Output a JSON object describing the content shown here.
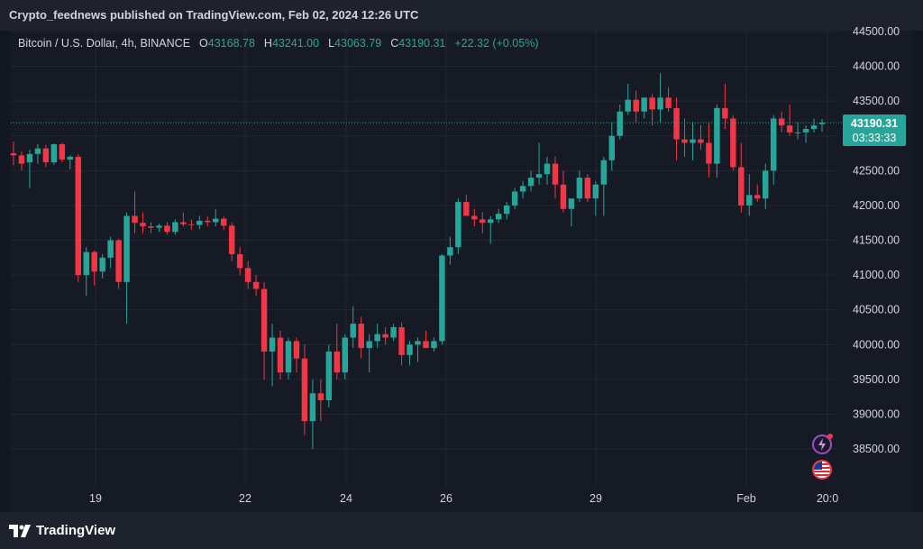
{
  "header": {
    "published_text": "Crypto_feednews published on TradingView.com, Feb 02, 2024 12:26 UTC"
  },
  "legend": {
    "symbol": "Bitcoin / U.S. Dollar, 4h, BINANCE",
    "o_label": "O",
    "o_value": "43168.78",
    "h_label": "H",
    "h_value": "43241.00",
    "l_label": "L",
    "l_value": "43063.79",
    "c_label": "C",
    "c_value": "43190.31",
    "change": "+22.32 (+0.05%)"
  },
  "price_badge": {
    "price": "43190.31",
    "countdown": "03:33:33"
  },
  "footer": {
    "brand": "TradingView"
  },
  "colors": {
    "up": "#26a69a",
    "down": "#f23645",
    "background": "#131722",
    "grid": "#232733"
  },
  "icons": [
    "flash-icon",
    "us-flag-icon",
    "tradingview-logo-icon"
  ],
  "chart_data": {
    "type": "candlestick",
    "yaxis_ticks": [
      "44500.00",
      "44000.00",
      "43500.00",
      "43000.00",
      "42500.00",
      "42000.00",
      "41500.00",
      "41000.00",
      "40500.00",
      "40000.00",
      "39500.00",
      "39000.00",
      "38500.00"
    ],
    "ylim": [
      38000,
      44500
    ],
    "xaxis_ticks": [
      "19",
      "22",
      "24",
      "26",
      "29",
      "Feb",
      "20:0"
    ],
    "current_price": 43190.31,
    "candles": [
      {
        "o": 42750,
        "h": 42920,
        "l": 42580,
        "c": 42720
      },
      {
        "o": 42720,
        "h": 42780,
        "l": 42500,
        "c": 42600
      },
      {
        "o": 42620,
        "h": 42800,
        "l": 42250,
        "c": 42740
      },
      {
        "o": 42740,
        "h": 42880,
        "l": 42600,
        "c": 42820
      },
      {
        "o": 42820,
        "h": 42870,
        "l": 42550,
        "c": 42620
      },
      {
        "o": 42620,
        "h": 42890,
        "l": 42580,
        "c": 42880
      },
      {
        "o": 42880,
        "h": 42900,
        "l": 42620,
        "c": 42660
      },
      {
        "o": 42660,
        "h": 42720,
        "l": 42520,
        "c": 42700
      },
      {
        "o": 42700,
        "h": 42740,
        "l": 40900,
        "c": 41000
      },
      {
        "o": 41000,
        "h": 41400,
        "l": 40700,
        "c": 41330
      },
      {
        "o": 41330,
        "h": 41350,
        "l": 40850,
        "c": 41050
      },
      {
        "o": 41050,
        "h": 41300,
        "l": 40950,
        "c": 41250
      },
      {
        "o": 41250,
        "h": 41550,
        "l": 41100,
        "c": 41500
      },
      {
        "o": 41500,
        "h": 41520,
        "l": 40800,
        "c": 40900
      },
      {
        "o": 40900,
        "h": 41900,
        "l": 40300,
        "c": 41850
      },
      {
        "o": 41850,
        "h": 42200,
        "l": 41600,
        "c": 41750
      },
      {
        "o": 41750,
        "h": 41900,
        "l": 41600,
        "c": 41700
      },
      {
        "o": 41700,
        "h": 41760,
        "l": 41600,
        "c": 41680
      },
      {
        "o": 41680,
        "h": 41740,
        "l": 41620,
        "c": 41710
      },
      {
        "o": 41710,
        "h": 41760,
        "l": 41580,
        "c": 41620
      },
      {
        "o": 41620,
        "h": 41800,
        "l": 41580,
        "c": 41760
      },
      {
        "o": 41760,
        "h": 41900,
        "l": 41700,
        "c": 41730
      },
      {
        "o": 41730,
        "h": 41800,
        "l": 41650,
        "c": 41720
      },
      {
        "o": 41720,
        "h": 41850,
        "l": 41660,
        "c": 41780
      },
      {
        "o": 41780,
        "h": 41840,
        "l": 41700,
        "c": 41760
      },
      {
        "o": 41760,
        "h": 41950,
        "l": 41700,
        "c": 41810
      },
      {
        "o": 41810,
        "h": 41840,
        "l": 41650,
        "c": 41710
      },
      {
        "o": 41710,
        "h": 41760,
        "l": 41200,
        "c": 41300
      },
      {
        "o": 41300,
        "h": 41400,
        "l": 41000,
        "c": 41100
      },
      {
        "o": 41100,
        "h": 41200,
        "l": 40800,
        "c": 40900
      },
      {
        "o": 40900,
        "h": 41000,
        "l": 40700,
        "c": 40800
      },
      {
        "o": 40800,
        "h": 40900,
        "l": 39500,
        "c": 39900
      },
      {
        "o": 39900,
        "h": 40300,
        "l": 39400,
        "c": 40100
      },
      {
        "o": 40100,
        "h": 40200,
        "l": 39500,
        "c": 39600
      },
      {
        "o": 39600,
        "h": 40100,
        "l": 39500,
        "c": 40050
      },
      {
        "o": 40050,
        "h": 40100,
        "l": 39600,
        "c": 39800
      },
      {
        "o": 39800,
        "h": 40000,
        "l": 38700,
        "c": 38900
      },
      {
        "o": 38900,
        "h": 39500,
        "l": 38500,
        "c": 39300
      },
      {
        "o": 39300,
        "h": 39500,
        "l": 38900,
        "c": 39200
      },
      {
        "o": 39200,
        "h": 40000,
        "l": 39100,
        "c": 39900
      },
      {
        "o": 39900,
        "h": 40300,
        "l": 39500,
        "c": 39600
      },
      {
        "o": 39600,
        "h": 40150,
        "l": 39500,
        "c": 40100
      },
      {
        "o": 40100,
        "h": 40550,
        "l": 39950,
        "c": 40300
      },
      {
        "o": 40300,
        "h": 40400,
        "l": 39800,
        "c": 39950
      },
      {
        "o": 39950,
        "h": 40150,
        "l": 39600,
        "c": 40050
      },
      {
        "o": 40050,
        "h": 40300,
        "l": 39950,
        "c": 40150
      },
      {
        "o": 40150,
        "h": 40250,
        "l": 40000,
        "c": 40100
      },
      {
        "o": 40100,
        "h": 40300,
        "l": 40050,
        "c": 40250
      },
      {
        "o": 40250,
        "h": 40320,
        "l": 39700,
        "c": 39850
      },
      {
        "o": 39850,
        "h": 40050,
        "l": 39700,
        "c": 40000
      },
      {
        "o": 40000,
        "h": 40100,
        "l": 39750,
        "c": 40050
      },
      {
        "o": 40050,
        "h": 40200,
        "l": 39950,
        "c": 39950
      },
      {
        "o": 39950,
        "h": 40100,
        "l": 39900,
        "c": 40050
      },
      {
        "o": 40050,
        "h": 41300,
        "l": 40000,
        "c": 41280
      },
      {
        "o": 41280,
        "h": 41550,
        "l": 41150,
        "c": 41400
      },
      {
        "o": 41400,
        "h": 42100,
        "l": 41300,
        "c": 42050
      },
      {
        "o": 42050,
        "h": 42150,
        "l": 41850,
        "c": 41850
      },
      {
        "o": 41850,
        "h": 41950,
        "l": 41700,
        "c": 41800
      },
      {
        "o": 41800,
        "h": 41900,
        "l": 41600,
        "c": 41750
      },
      {
        "o": 41750,
        "h": 41850,
        "l": 41450,
        "c": 41800
      },
      {
        "o": 41800,
        "h": 41950,
        "l": 41750,
        "c": 41880
      },
      {
        "o": 41880,
        "h": 42050,
        "l": 41800,
        "c": 42000
      },
      {
        "o": 42000,
        "h": 42250,
        "l": 41950,
        "c": 42200
      },
      {
        "o": 42200,
        "h": 42350,
        "l": 42100,
        "c": 42280
      },
      {
        "o": 42280,
        "h": 42500,
        "l": 42200,
        "c": 42400
      },
      {
        "o": 42400,
        "h": 42900,
        "l": 42300,
        "c": 42450
      },
      {
        "o": 42450,
        "h": 42700,
        "l": 42300,
        "c": 42600
      },
      {
        "o": 42600,
        "h": 42700,
        "l": 42100,
        "c": 42300
      },
      {
        "o": 42300,
        "h": 42500,
        "l": 41900,
        "c": 41950
      },
      {
        "o": 41950,
        "h": 42100,
        "l": 41700,
        "c": 42100
      },
      {
        "o": 42100,
        "h": 42500,
        "l": 42050,
        "c": 42400
      },
      {
        "o": 42400,
        "h": 42450,
        "l": 42050,
        "c": 42100
      },
      {
        "o": 42100,
        "h": 42350,
        "l": 41850,
        "c": 42300
      },
      {
        "o": 42300,
        "h": 42700,
        "l": 41850,
        "c": 42650
      },
      {
        "o": 42650,
        "h": 43200,
        "l": 42500,
        "c": 43000
      },
      {
        "o": 43000,
        "h": 43450,
        "l": 42950,
        "c": 43350
      },
      {
        "o": 43350,
        "h": 43750,
        "l": 43300,
        "c": 43520
      },
      {
        "o": 43520,
        "h": 43650,
        "l": 43200,
        "c": 43350
      },
      {
        "o": 43350,
        "h": 43550,
        "l": 43250,
        "c": 43550
      },
      {
        "o": 43550,
        "h": 43600,
        "l": 43150,
        "c": 43380
      },
      {
        "o": 43380,
        "h": 43900,
        "l": 43200,
        "c": 43550
      },
      {
        "o": 43550,
        "h": 43700,
        "l": 43350,
        "c": 43400
      },
      {
        "o": 43400,
        "h": 43550,
        "l": 42650,
        "c": 42950
      },
      {
        "o": 42950,
        "h": 43250,
        "l": 42700,
        "c": 42900
      },
      {
        "o": 42900,
        "h": 43200,
        "l": 42650,
        "c": 42950
      },
      {
        "o": 42950,
        "h": 43150,
        "l": 42800,
        "c": 42900
      },
      {
        "o": 42900,
        "h": 43200,
        "l": 42400,
        "c": 42600
      },
      {
        "o": 42600,
        "h": 43450,
        "l": 42400,
        "c": 43400
      },
      {
        "o": 43400,
        "h": 43750,
        "l": 43100,
        "c": 43250
      },
      {
        "o": 43250,
        "h": 43300,
        "l": 42500,
        "c": 42550
      },
      {
        "o": 42550,
        "h": 42900,
        "l": 41900,
        "c": 42000
      },
      {
        "o": 42000,
        "h": 42450,
        "l": 41850,
        "c": 42150
      },
      {
        "o": 42150,
        "h": 42300,
        "l": 42050,
        "c": 42100
      },
      {
        "o": 42100,
        "h": 42600,
        "l": 41950,
        "c": 42500
      },
      {
        "o": 42500,
        "h": 43300,
        "l": 42300,
        "c": 43250
      },
      {
        "o": 43250,
        "h": 43350,
        "l": 43050,
        "c": 43150
      },
      {
        "o": 43150,
        "h": 43450,
        "l": 43000,
        "c": 43050
      },
      {
        "o": 43050,
        "h": 43200,
        "l": 42950,
        "c": 43050
      },
      {
        "o": 43050,
        "h": 43150,
        "l": 42900,
        "c": 43100
      },
      {
        "o": 43100,
        "h": 43250,
        "l": 43050,
        "c": 43150
      },
      {
        "o": 43168.78,
        "h": 43241,
        "l": 43063.79,
        "c": 43190.31
      }
    ]
  }
}
